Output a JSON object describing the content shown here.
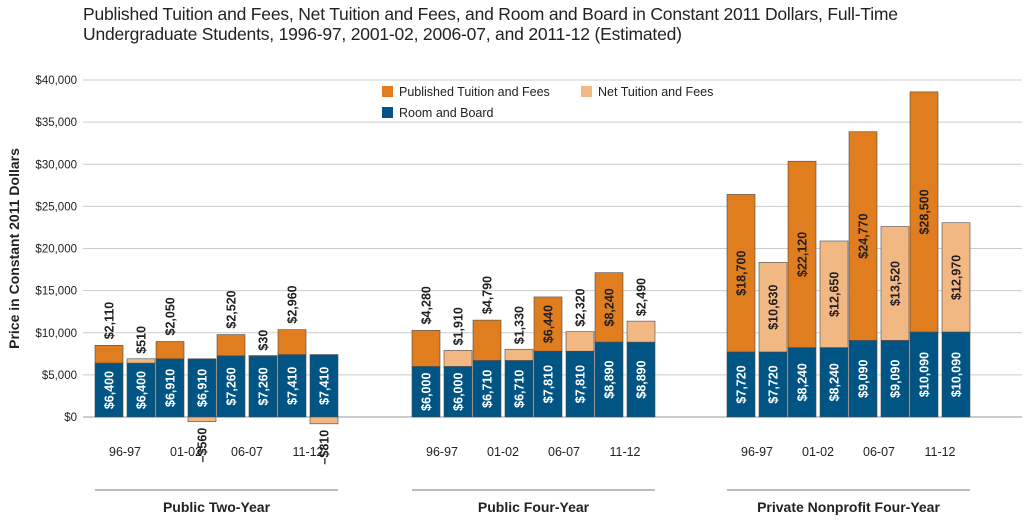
{
  "title": {
    "line1": "Published Tuition and Fees, Net Tuition and Fees, and Room and Board in Constant 2011 Dollars, Full-Time",
    "line2": "Undergraduate Students, 1996-97, 2001-02, 2006-07, and 2011-12 (Estimated)"
  },
  "colors": {
    "published": "#e07d1e",
    "net": "#f2b884",
    "room": "#005585",
    "grid": "#cccccc",
    "axis_text": "#222222"
  },
  "chart_data": {
    "type": "bar",
    "stacked": true,
    "ylabel": "Price in Constant 2011 Dollars",
    "ylim": [
      0,
      40000
    ],
    "yticks": [
      0,
      5000,
      10000,
      15000,
      20000,
      25000,
      30000,
      35000,
      40000
    ],
    "ytick_labels": [
      "$0",
      "$5,000",
      "$10,000",
      "$15,000",
      "$20,000",
      "$25,000",
      "$30,000",
      "$35,000",
      "$40,000"
    ],
    "grid": true,
    "legend": {
      "placement": "top-center",
      "entries": [
        {
          "key": "published",
          "label": "Published Tuition and Fees"
        },
        {
          "key": "net",
          "label": "Net Tuition and Fees"
        },
        {
          "key": "room",
          "label": "Room and Board"
        }
      ]
    },
    "sectors": [
      {
        "name": "Public Two-Year",
        "years": [
          {
            "label": "96-97",
            "room": 6400,
            "room_label": "$6,400",
            "published": 2110,
            "published_label": "$2,110",
            "net": 510,
            "net_label": "$510"
          },
          {
            "label": "01-02",
            "room": 6910,
            "room_label": "$6,910",
            "published": 2050,
            "published_label": "$2,050",
            "net": -560,
            "net_label": "–$560"
          },
          {
            "label": "06-07",
            "room": 7260,
            "room_label": "$7,260",
            "published": 2520,
            "published_label": "$2,520",
            "net": 30,
            "net_label": "$30"
          },
          {
            "label": "11-12",
            "room": 7410,
            "room_label": "$7,410",
            "published": 2960,
            "published_label": "$2,960",
            "net": -810,
            "net_label": "–$810"
          }
        ]
      },
      {
        "name": "Public Four-Year",
        "years": [
          {
            "label": "96-97",
            "room": 6000,
            "room_label": "$6,000",
            "published": 4280,
            "published_label": "$4,280",
            "net": 1910,
            "net_label": "$1,910"
          },
          {
            "label": "01-02",
            "room": 6710,
            "room_label": "$6,710",
            "published": 4790,
            "published_label": "$4,790",
            "net": 1330,
            "net_label": "$1,330"
          },
          {
            "label": "06-07",
            "room": 7810,
            "room_label": "$7,810",
            "published": 6440,
            "published_label": "$6,440",
            "net": 2320,
            "net_label": "$2,320"
          },
          {
            "label": "11-12",
            "room": 8890,
            "room_label": "$8,890",
            "published": 8240,
            "published_label": "$8,240",
            "net": 2490,
            "net_label": "$2,490"
          }
        ]
      },
      {
        "name": "Private Nonprofit Four-Year",
        "years": [
          {
            "label": "96-97",
            "room": 7720,
            "room_label": "$7,720",
            "published": 18700,
            "published_label": "$18,700",
            "net": 10630,
            "net_label": "$10,630"
          },
          {
            "label": "01-02",
            "room": 8240,
            "room_label": "$8,240",
            "published": 22120,
            "published_label": "$22,120",
            "net": 12650,
            "net_label": "$12,650"
          },
          {
            "label": "06-07",
            "room": 9090,
            "room_label": "$9,090",
            "published": 24770,
            "published_label": "$24,770",
            "net": 13520,
            "net_label": "$13,520"
          },
          {
            "label": "11-12",
            "room": 10090,
            "room_label": "$10,090",
            "published": 28500,
            "published_label": "$28,500",
            "net": 12970,
            "net_label": "$12,970"
          }
        ]
      }
    ]
  }
}
